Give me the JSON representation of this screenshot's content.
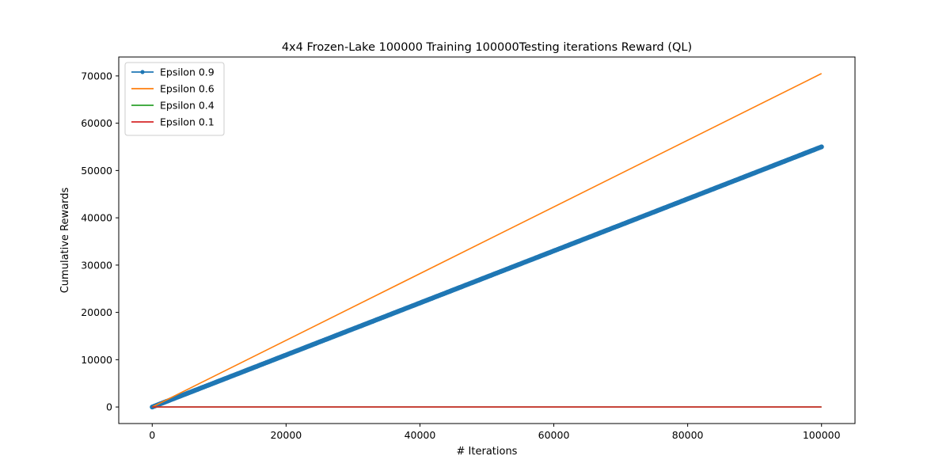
{
  "chart_data": {
    "type": "line",
    "title": "4x4 Frozen-Lake 100000 Training 100000Testing iterations  Reward (QL)",
    "xlabel": "# Iterations",
    "ylabel": "Cumulative Rewards",
    "xlim": [
      -5000,
      105000
    ],
    "ylim": [
      -3500,
      74000
    ],
    "xticks": [
      0,
      20000,
      40000,
      60000,
      80000,
      100000
    ],
    "yticks": [
      0,
      10000,
      20000,
      30000,
      40000,
      50000,
      60000,
      70000
    ],
    "legend_position": "top-left",
    "grid": false,
    "series": [
      {
        "name": "Epsilon 0.9",
        "color": "#1f77b4",
        "marker": "dot",
        "x": [
          0,
          100000
        ],
        "y": [
          0,
          55000
        ]
      },
      {
        "name": "Epsilon 0.6",
        "color": "#ff7f0e",
        "marker": "none",
        "x": [
          0,
          100000
        ],
        "y": [
          0,
          70500
        ]
      },
      {
        "name": "Epsilon 0.4",
        "color": "#2ca02c",
        "marker": "none",
        "x": [
          0,
          100000
        ],
        "y": [
          0,
          0
        ]
      },
      {
        "name": "Epsilon 0.1",
        "color": "#d62728",
        "marker": "none",
        "x": [
          0,
          100000
        ],
        "y": [
          0,
          0
        ]
      }
    ]
  }
}
